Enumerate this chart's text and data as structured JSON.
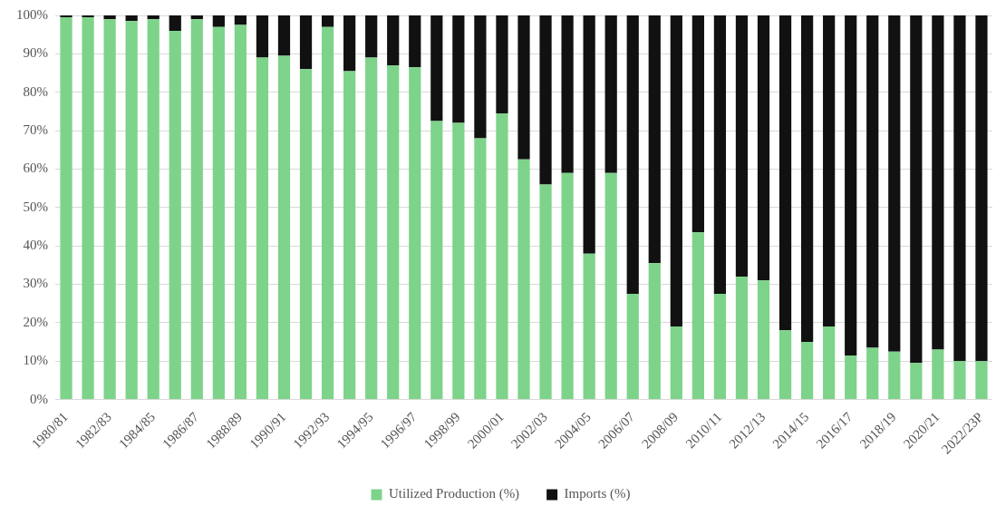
{
  "chart_data": {
    "type": "bar",
    "stacked": true,
    "categories": [
      "1980/81",
      null,
      "1982/83",
      null,
      "1984/85",
      null,
      "1986/87",
      null,
      "1988/89",
      null,
      "1990/91",
      null,
      "1992/93",
      null,
      "1994/95",
      null,
      "1996/97",
      null,
      "1998/99",
      null,
      "2000/01",
      null,
      "2002/03",
      null,
      "2004/05",
      null,
      "2006/07",
      null,
      "2008/09",
      null,
      "2010/11",
      null,
      "2012/13",
      null,
      "2014/15",
      null,
      "2016/17",
      null,
      "2018/19",
      null,
      "2020/21",
      null,
      "2022/23P"
    ],
    "series": [
      {
        "name": "Utilized Production (%)",
        "color": "#7dd38a",
        "values": [
          99.5,
          99.5,
          99,
          98.5,
          99,
          96,
          99,
          97,
          97.5,
          89,
          89.5,
          86,
          97,
          85.5,
          89,
          87,
          86.5,
          72.5,
          72,
          68,
          74.5,
          62.5,
          56,
          59,
          38,
          59,
          27.5,
          35.5,
          19,
          43.5,
          27.5,
          32,
          31,
          18,
          15,
          19,
          11.5,
          13.5,
          12.5,
          9.5,
          13,
          10,
          10
        ]
      },
      {
        "name": "Imports (%)",
        "color": "#111111",
        "values": [
          0.5,
          0.5,
          1,
          1.5,
          1,
          4,
          1,
          3,
          2.5,
          11,
          10.5,
          14,
          3,
          14.5,
          11,
          13,
          13.5,
          27.5,
          28,
          32,
          25.5,
          37.5,
          44,
          41,
          62,
          41,
          72.5,
          64.5,
          81,
          56.5,
          72.5,
          68,
          69,
          82,
          85,
          81,
          88.5,
          86.5,
          87.5,
          90.5,
          87,
          90,
          90
        ]
      }
    ],
    "ylim": [
      0,
      100
    ],
    "yticks": [
      {
        "value": 0,
        "label": "0%"
      },
      {
        "value": 10,
        "label": "10%"
      },
      {
        "value": 20,
        "label": "20%"
      },
      {
        "value": 30,
        "label": "30%"
      },
      {
        "value": 40,
        "label": "40%"
      },
      {
        "value": 50,
        "label": "50%"
      },
      {
        "value": 60,
        "label": "60%"
      },
      {
        "value": 70,
        "label": "70%"
      },
      {
        "value": 80,
        "label": "80%"
      },
      {
        "value": 90,
        "label": "90%"
      },
      {
        "value": 100,
        "label": "100%"
      }
    ],
    "grid": "y",
    "legend": "bottom"
  }
}
